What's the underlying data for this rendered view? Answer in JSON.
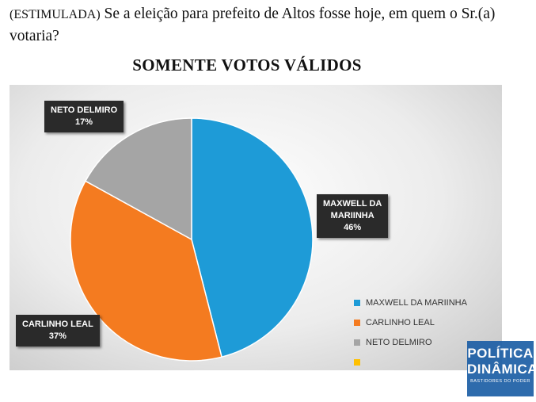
{
  "question": {
    "prefix": "(ESTIMULADA)",
    "text": " Se a eleição para prefeito de Altos fosse hoje, em quem o Sr.(a) votaria?"
  },
  "chart_data": {
    "type": "pie",
    "title": "SOMENTE VOTOS VÁLIDOS",
    "slices": [
      {
        "name": "MAXWELL DA MARIINHA",
        "label_line1": "MAXWELL DA",
        "label_line2": "MARIINHA",
        "value": 46,
        "value_label": "46%",
        "color": "#1e9bd7"
      },
      {
        "name": "CARLINHO LEAL",
        "label_line1": "CARLINHO LEAL",
        "value": 37,
        "value_label": "37%",
        "color": "#f47b20"
      },
      {
        "name": "NETO DELMIRO",
        "label_line1": "NETO DELMIRO",
        "value": 17,
        "value_label": "17%",
        "color": "#a5a5a5"
      }
    ],
    "legend": [
      {
        "name": "MAXWELL DA MARIINHA",
        "color": "#1e9bd7"
      },
      {
        "name": "CARLINHO LEAL",
        "color": "#f47b20"
      },
      {
        "name": "NETO DELMIRO",
        "color": "#a5a5a5"
      },
      {
        "name": "",
        "color": "#ffc000"
      }
    ],
    "legend_position": "bottom-right"
  },
  "watermark": {
    "line1": "POLÍTICA",
    "line2": "DINÂMICA",
    "line3": "BASTIDORES DO PODER"
  }
}
